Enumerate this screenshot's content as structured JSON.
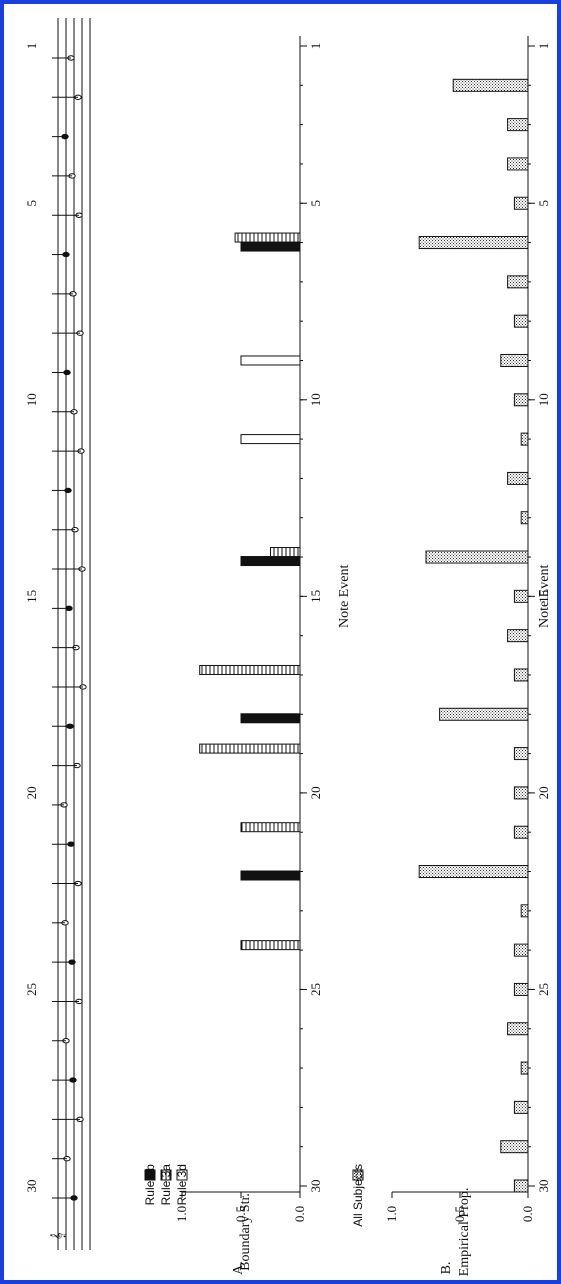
{
  "colors": {
    "border": "#1a3fe0",
    "ink": "#111111"
  },
  "chart_data": [
    {
      "type": "bar",
      "panel": "A",
      "panel_label": "A.",
      "xlabel": "Note Event",
      "ylabel": "Boundary Str.",
      "xlim": [
        0.5,
        30.5
      ],
      "ylim": [
        0,
        1.0
      ],
      "x_ticks": [
        1,
        5,
        10,
        15,
        20,
        25,
        30
      ],
      "y_ticks": [
        "0.0",
        "0.5",
        "1.0"
      ],
      "y_tick_values": [
        0,
        0.5,
        1.0
      ],
      "legend": "top-left",
      "series": [
        {
          "name": "Rule 2b",
          "style": "solid",
          "points": [
            [
              6,
              0.5
            ],
            [
              14,
              0.5
            ],
            [
              18,
              0.5
            ],
            [
              22,
              0.5
            ]
          ]
        },
        {
          "name": "Rule 3a",
          "style": "striped",
          "points": [
            [
              6,
              0.55
            ],
            [
              14,
              0.25
            ],
            [
              17,
              0.85
            ],
            [
              19,
              0.85
            ],
            [
              21,
              0.5
            ],
            [
              24,
              0.5
            ]
          ]
        },
        {
          "name": "Rule 3d",
          "style": "open",
          "points": [
            [
              9,
              0.5
            ],
            [
              11,
              0.5
            ]
          ]
        }
      ]
    },
    {
      "type": "bar",
      "panel": "B",
      "panel_label": "B.",
      "xlabel": "Note Event",
      "ylabel": "Empirical Prop.",
      "xlim": [
        0.5,
        30.5
      ],
      "ylim": [
        0,
        1.0
      ],
      "x_ticks": [
        1,
        5,
        10,
        15,
        20,
        25,
        30
      ],
      "y_ticks": [
        "0.0",
        "0.5",
        "1.0"
      ],
      "y_tick_values": [
        0,
        0.5,
        1.0
      ],
      "legend": "top-left",
      "series": [
        {
          "name": "All Subjects",
          "style": "dotted",
          "points": [
            [
              2,
              0.55
            ],
            [
              3,
              0.15
            ],
            [
              4,
              0.15
            ],
            [
              5,
              0.1
            ],
            [
              6,
              0.8
            ],
            [
              7,
              0.15
            ],
            [
              8,
              0.1
            ],
            [
              9,
              0.2
            ],
            [
              10,
              0.1
            ],
            [
              11,
              0.05
            ],
            [
              12,
              0.15
            ],
            [
              13,
              0.05
            ],
            [
              14,
              0.75
            ],
            [
              15,
              0.1
            ],
            [
              16,
              0.15
            ],
            [
              17,
              0.1
            ],
            [
              18,
              0.65
            ],
            [
              19,
              0.1
            ],
            [
              20,
              0.1
            ],
            [
              21,
              0.1
            ],
            [
              22,
              0.8
            ],
            [
              23,
              0.05
            ],
            [
              24,
              0.1
            ],
            [
              25,
              0.1
            ],
            [
              26,
              0.15
            ],
            [
              27,
              0.05
            ],
            [
              28,
              0.1
            ],
            [
              29,
              0.2
            ],
            [
              30,
              0.1
            ]
          ]
        }
      ]
    }
  ],
  "score": {
    "x_ticks": [
      1,
      5,
      10,
      15,
      20,
      25,
      30
    ],
    "note_events": [
      1,
      2,
      3,
      4,
      5,
      6,
      7,
      8,
      9,
      10,
      11,
      12,
      13,
      14,
      15,
      16,
      17,
      18,
      19,
      20,
      21,
      22,
      23,
      24,
      25,
      26,
      27,
      28,
      29,
      30
    ],
    "clef": "treble-clef-icon"
  }
}
